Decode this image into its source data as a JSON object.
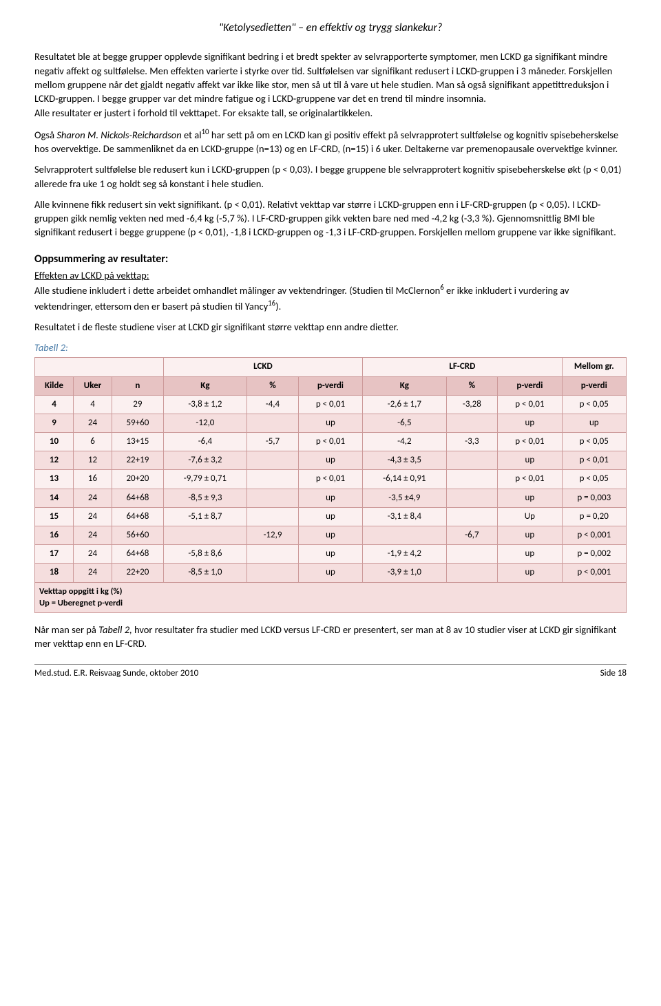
{
  "page_title": "\"Ketolysedietten\" – en effektiv og trygg slankekur?",
  "paragraphs": {
    "p1": "Resultatet ble at begge grupper opplevde signifikant bedring i et bredt spekter av selvrapporterte symptomer, men LCKD ga signifikant mindre negativ affekt og sultfølelse. Men effekten varierte i styrke over tid. Sultfølelsen var signifikant redusert i LCKD-gruppen i 3 måneder. Forskjellen mellom gruppene når det gjaldt negativ affekt var ikke like stor, men så ut til å vare ut hele studien. Man så også signifikant appetittreduksjon i LCKD-gruppen. I begge grupper var det mindre fatigue og i LCKD-gruppene var det en trend til mindre insomnia.",
    "p1b": "Alle resultater er justert i forhold til vekttapet. For eksakte tall, se originalartikkelen.",
    "p2a_prefix": "Også ",
    "p2a_author": "Sharon M. Nickols-Reichardson",
    "p2a_mid": " et al",
    "p2a_sup": "10",
    "p2a_rest": " har sett på om en LCKD kan gi positiv effekt på selvrapprotert sultfølelse og kognitiv spisebeherskelse hos overvektige. De sammenliknet da en LCKD-gruppe (n=13) og en LF-CRD, (n=15) i 6 uker. Deltakerne var premenopausale overvektige kvinner.",
    "p2b": "Selvrapprotert sultfølelse ble redusert kun i LCKD-gruppen (p < 0,03). I begge gruppene ble selvrapprotert kognitiv spisebeherskelse økt (p < 0,01) allerede fra uke 1 og holdt seg så konstant i hele studien.",
    "p2c": "Alle kvinnene fikk redusert sin vekt signifikant. (p < 0,01). Relativt vekttap var større i LCKD-gruppen enn i LF-CRD-gruppen (p < 0,05). I LCKD-gruppen gikk nemlig vekten ned med -6,4 kg (-5,7 %). I LF-CRD-gruppen gikk vekten bare ned med -4,2 kg (-3,3 %). Gjennomsnittlig BMI ble signifikant redusert i begge gruppene (p < 0,01), -1,8 i LCKD-gruppen og -1,3 i LF-CRD-gruppen. Forskjellen mellom gruppene var ikke signifikant."
  },
  "summary": {
    "heading": "Oppsummering av resultater:",
    "sub": "Effekten av LCKD på vekttap:",
    "p1_a": "Alle studiene inkludert i dette arbeidet omhandlet målinger av vektendringer. (Studien til McClernon",
    "p1_sup1": "6",
    "p1_b": " er ikke inkludert i vurdering av vektendringer, ettersom den er basert på studien til Yancy",
    "p1_sup2": "16",
    "p1_c": ").",
    "p2": "Resultatet i de fleste studiene viser at LCKD gir signifikant større vekttap enn andre dietter."
  },
  "table": {
    "caption": "Tabell 2:",
    "group_lckd": "LCKD",
    "group_lfcrd": "LF-CRD",
    "group_between": "Mellom gr.",
    "head": [
      "Kilde",
      "Uker",
      "n",
      "Kg",
      "%",
      "p-verdi",
      "Kg",
      "%",
      "p-verdi",
      "p-verdi"
    ],
    "head_bg": "#e7c3c3",
    "row_colors": {
      "even": "#f5dede",
      "odd": "#fbf0f0"
    },
    "border_color": "#cc9999",
    "rows": [
      [
        "4",
        "4",
        "29",
        "-3,8 ± 1,2",
        "-4,4",
        "p < 0,01",
        "-2,6 ± 1,7",
        "-3,28",
        "p < 0,01",
        "p < 0,05"
      ],
      [
        "9",
        "24",
        "59+60",
        "-12,0",
        "",
        "up",
        "-6,5",
        "",
        "up",
        "up"
      ],
      [
        "10",
        "6",
        "13+15",
        "-6,4",
        "-5,7",
        "p < 0,01",
        "-4,2",
        "-3,3",
        "p < 0,01",
        "p < 0,05"
      ],
      [
        "12",
        "12",
        "22+19",
        "-7,6 ± 3,2",
        "",
        "up",
        "-4,3 ± 3,5",
        "",
        "up",
        "p < 0,01"
      ],
      [
        "13",
        "16",
        "20+20",
        "-9,79 ± 0,71",
        "",
        "p < 0,01",
        "-6,14 ± 0,91",
        "",
        "p < 0,01",
        "p < 0,05"
      ],
      [
        "14",
        "24",
        "64+68",
        "-8,5 ± 9,3",
        "",
        "up",
        "-3,5 ±4,9",
        "",
        "up",
        "p = 0,003"
      ],
      [
        "15",
        "24",
        "64+68",
        "-5,1 ± 8,7",
        "",
        "up",
        "-3,1 ± 8,4",
        "",
        "Up",
        "p = 0,20"
      ],
      [
        "16",
        "24",
        "56+60",
        "",
        "-12,9",
        "up",
        "",
        "-6,7",
        "up",
        "p < 0,001"
      ],
      [
        "17",
        "24",
        "64+68",
        "-5,8 ± 8,6",
        "",
        "up",
        "-1,9 ± 4,2",
        "",
        "up",
        "p = 0,002"
      ],
      [
        "18",
        "24",
        "22+20",
        "-8,5 ± 1,0",
        "",
        "up",
        "-3,9 ± 1,0",
        "",
        "up",
        "p < 0,001"
      ]
    ],
    "note_line1": "Vekttap oppgitt i kg (%)",
    "note_line2": "Up = Uberegnet p-verdi",
    "col_widths": [
      "6%",
      "6%",
      "8%",
      "13%",
      "8%",
      "10%",
      "13%",
      "8%",
      "10%",
      "10%"
    ]
  },
  "closing_a": "Når man ser på ",
  "closing_i": "Tabell 2,",
  "closing_b": " hvor resultater fra studier med LCKD versus LF-CRD er presentert, ser man at 8 av 10 studier viser at LCKD gir signifikant mer vekttap enn en LF-CRD.",
  "footer_left": "Med.stud. E.R. Reisvaag Sunde, oktober 2010",
  "footer_right": "Side 18"
}
